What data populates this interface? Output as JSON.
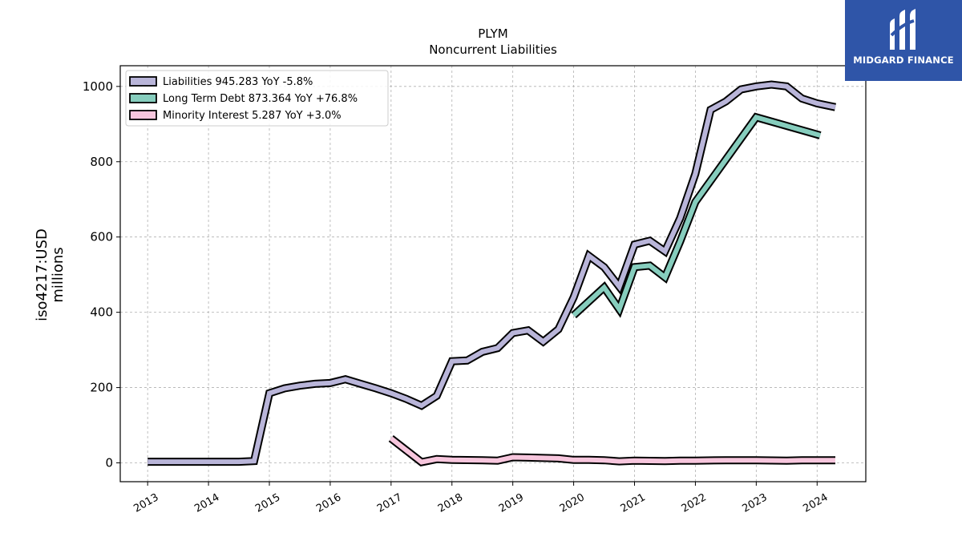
{
  "brand": {
    "name": "MIDGARD FINANCE",
    "color": "#2f55a8"
  },
  "chart_data": {
    "type": "line",
    "title": "PLYM",
    "subtitle": "Noncurrent  Liabilities",
    "ylabel_line1": "iso4217:USD",
    "ylabel_line2": "millions",
    "xlabel": "",
    "xlim": [
      2012.55,
      2024.8
    ],
    "ylim": [
      -50,
      1055
    ],
    "yticks": [
      0,
      200,
      400,
      600,
      800,
      1000
    ],
    "ytick_labels": [
      "0",
      "200",
      "400",
      "600",
      "800",
      "1000"
    ],
    "xticks": [
      2013,
      2014,
      2015,
      2016,
      2017,
      2018,
      2019,
      2020,
      2021,
      2022,
      2023,
      2024
    ],
    "xtick_labels": [
      "2013",
      "2014",
      "2015",
      "2016",
      "2017",
      "2018",
      "2019",
      "2020",
      "2021",
      "2022",
      "2023",
      "2024"
    ],
    "grid": true,
    "legend_position": "top-left",
    "series": [
      {
        "name": "Liabilities",
        "legend": "Liabilities  945.283 YoY -5.8%",
        "color": "#b9b5d9",
        "points": [
          [
            2013.0,
            3
          ],
          [
            2013.9,
            3
          ],
          [
            2014.5,
            3
          ],
          [
            2014.75,
            5
          ],
          [
            2015.0,
            185
          ],
          [
            2015.25,
            198
          ],
          [
            2015.5,
            205
          ],
          [
            2015.75,
            210
          ],
          [
            2016.0,
            212
          ],
          [
            2016.25,
            222
          ],
          [
            2016.5,
            210
          ],
          [
            2016.75,
            198
          ],
          [
            2017.0,
            185
          ],
          [
            2017.25,
            170
          ],
          [
            2017.5,
            152
          ],
          [
            2017.75,
            178
          ],
          [
            2018.0,
            270
          ],
          [
            2018.25,
            272
          ],
          [
            2018.5,
            295
          ],
          [
            2018.75,
            305
          ],
          [
            2019.0,
            345
          ],
          [
            2019.25,
            352
          ],
          [
            2019.5,
            322
          ],
          [
            2019.75,
            355
          ],
          [
            2020.0,
            440
          ],
          [
            2020.25,
            550
          ],
          [
            2020.5,
            520
          ],
          [
            2020.75,
            468
          ],
          [
            2021.0,
            580
          ],
          [
            2021.25,
            590
          ],
          [
            2021.5,
            562
          ],
          [
            2021.75,
            650
          ],
          [
            2022.0,
            768
          ],
          [
            2022.25,
            938
          ],
          [
            2022.5,
            960
          ],
          [
            2022.75,
            992
          ],
          [
            2023.0,
            1000
          ],
          [
            2023.25,
            1005
          ],
          [
            2023.5,
            1000
          ],
          [
            2023.75,
            968
          ],
          [
            2024.0,
            955
          ],
          [
            2024.3,
            945
          ]
        ]
      },
      {
        "name": "Long Term Debt",
        "legend": "Long Term Debt  873.364 YoY +76.8%",
        "color": "#86cdbd",
        "points": [
          [
            2020.0,
            392
          ],
          [
            2020.5,
            466
          ],
          [
            2020.75,
            408
          ],
          [
            2021.0,
            520
          ],
          [
            2021.25,
            524
          ],
          [
            2021.5,
            493
          ],
          [
            2021.75,
            588
          ],
          [
            2022.0,
            693
          ],
          [
            2023.0,
            918
          ],
          [
            2024.05,
            870
          ]
        ]
      },
      {
        "name": "Minority Interest",
        "legend": "Minority Interest  5.287 YoY +3.0%",
        "color": "#f7c6dd",
        "points": [
          [
            2017.0,
            65
          ],
          [
            2017.5,
            2
          ],
          [
            2017.75,
            10
          ],
          [
            2018.0,
            8
          ],
          [
            2018.5,
            7
          ],
          [
            2018.75,
            6
          ],
          [
            2019.0,
            15
          ],
          [
            2019.25,
            14
          ],
          [
            2019.5,
            13
          ],
          [
            2019.75,
            12
          ],
          [
            2020.0,
            8
          ],
          [
            2020.25,
            8
          ],
          [
            2020.5,
            7
          ],
          [
            2020.75,
            4
          ],
          [
            2021.0,
            6
          ],
          [
            2021.5,
            5
          ],
          [
            2021.75,
            6
          ],
          [
            2022.0,
            6
          ],
          [
            2022.5,
            7
          ],
          [
            2022.75,
            7
          ],
          [
            2023.0,
            7
          ],
          [
            2023.5,
            6
          ],
          [
            2023.75,
            7
          ],
          [
            2024.3,
            7
          ]
        ]
      }
    ]
  }
}
